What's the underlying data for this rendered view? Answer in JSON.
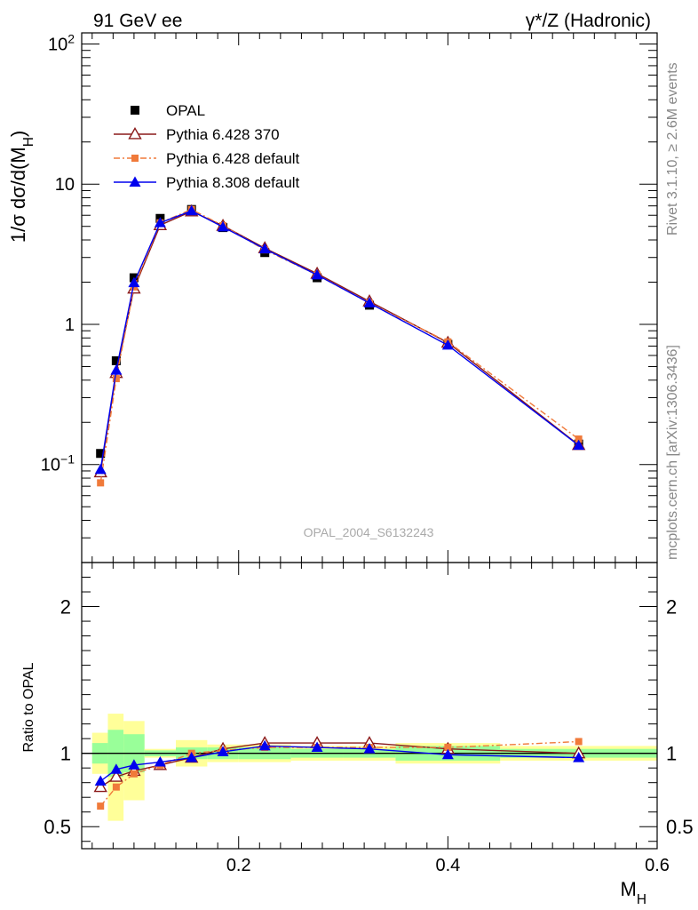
{
  "header": {
    "left": "91 GeV ee",
    "right": "γ*/Z (Hadronic)"
  },
  "side": {
    "rivet": "Rivet 3.1.10, ≥ 2.6M events",
    "mcplots": "mcplots.cern.ch [arXiv:1306.3436]"
  },
  "watermark": "OPAL_2004_S6132243",
  "chart_data": [
    {
      "type": "line",
      "ylabel": "1/σ dσ/d(M_H)",
      "xlabel": "M_H",
      "xlim": [
        0.05,
        0.6
      ],
      "ylim": [
        0.02,
        120
      ],
      "yscale": "log",
      "xticks": [
        "0.2",
        "0.4",
        "0.6"
      ],
      "yticks": [
        "10⁻¹",
        "1",
        "10",
        "10²"
      ],
      "legend_position": "top-left",
      "x": [
        0.068,
        0.083,
        0.1,
        0.125,
        0.155,
        0.185,
        0.225,
        0.275,
        0.325,
        0.4,
        0.525
      ],
      "series": [
        {
          "name": "OPAL",
          "style": "data",
          "marker": "square",
          "color": "#000000",
          "values": [
            0.12,
            0.55,
            2.15,
            5.7,
            6.6,
            4.9,
            3.25,
            2.15,
            1.37,
            0.72,
            0.14
          ]
        },
        {
          "name": "Pythia 6.428 370",
          "style": "solid",
          "marker": "open-triangle",
          "color": "#8b1a1a",
          "values": [
            0.088,
            0.45,
            1.8,
            5.1,
            6.4,
            5.05,
            3.5,
            2.3,
            1.46,
            0.74,
            0.138
          ]
        },
        {
          "name": "Pythia 6.428 default",
          "style": "dashdot",
          "marker": "square",
          "color": "#f07a3a",
          "values": [
            0.074,
            0.41,
            1.85,
            5.3,
            6.6,
            5.05,
            3.4,
            2.25,
            1.42,
            0.75,
            0.152
          ]
        },
        {
          "name": "Pythia 8.308 default",
          "style": "solid",
          "marker": "filled-triangle",
          "color": "#0000ee",
          "values": [
            0.092,
            0.47,
            1.98,
            5.3,
            6.45,
            4.95,
            3.45,
            2.25,
            1.42,
            0.71,
            0.137
          ]
        }
      ]
    },
    {
      "type": "line",
      "ylabel": "Ratio to OPAL",
      "xlabel": "M_H",
      "xlim": [
        0.05,
        0.6
      ],
      "ylim": [
        0.35,
        2.3
      ],
      "yticks": [
        "0.5",
        "1",
        "2"
      ],
      "bins": [
        {
          "x0": 0.06,
          "x1": 0.075,
          "green": [
            0.93,
            1.07
          ],
          "yellow": [
            0.86,
            1.14
          ]
        },
        {
          "x0": 0.075,
          "x1": 0.09,
          "green": [
            0.84,
            1.16
          ],
          "yellow": [
            0.54,
            1.27
          ]
        },
        {
          "x0": 0.09,
          "x1": 0.11,
          "green": [
            0.87,
            1.13
          ],
          "yellow": [
            0.68,
            1.22
          ]
        },
        {
          "x0": 0.11,
          "x1": 0.14,
          "green": [
            0.98,
            1.02
          ],
          "yellow": [
            0.97,
            1.03
          ]
        },
        {
          "x0": 0.14,
          "x1": 0.17,
          "green": [
            0.96,
            1.04
          ],
          "yellow": [
            0.91,
            1.09
          ]
        },
        {
          "x0": 0.17,
          "x1": 0.2,
          "green": [
            0.96,
            1.04
          ],
          "yellow": [
            0.94,
            1.06
          ]
        },
        {
          "x0": 0.2,
          "x1": 0.25,
          "green": [
            0.96,
            1.04
          ],
          "yellow": [
            0.94,
            1.06
          ]
        },
        {
          "x0": 0.25,
          "x1": 0.3,
          "green": [
            0.97,
            1.03
          ],
          "yellow": [
            0.95,
            1.05
          ]
        },
        {
          "x0": 0.3,
          "x1": 0.35,
          "green": [
            0.97,
            1.03
          ],
          "yellow": [
            0.95,
            1.05
          ]
        },
        {
          "x0": 0.35,
          "x1": 0.45,
          "green": [
            0.95,
            1.05
          ],
          "yellow": [
            0.93,
            1.07
          ]
        },
        {
          "x0": 0.45,
          "x1": 0.6,
          "green": [
            0.97,
            1.03
          ],
          "yellow": [
            0.95,
            1.05
          ]
        }
      ],
      "x": [
        0.068,
        0.083,
        0.1,
        0.125,
        0.155,
        0.185,
        0.225,
        0.275,
        0.325,
        0.4,
        0.525
      ],
      "series": [
        {
          "name": "Pythia 6.428 370",
          "style": "solid",
          "marker": "open-triangle",
          "color": "#8b1a1a",
          "values": [
            0.77,
            0.84,
            0.88,
            0.92,
            0.97,
            1.03,
            1.07,
            1.07,
            1.07,
            1.03,
            1.0
          ]
        },
        {
          "name": "Pythia 6.428 default",
          "style": "dashdot",
          "marker": "square",
          "color": "#f07a3a",
          "values": [
            0.64,
            0.77,
            0.86,
            0.92,
            1.0,
            1.02,
            1.04,
            1.04,
            1.04,
            1.04,
            1.08
          ]
        },
        {
          "name": "Pythia 8.308 default",
          "style": "solid",
          "marker": "filled-triangle",
          "color": "#0000ee",
          "values": [
            0.81,
            0.89,
            0.92,
            0.94,
            0.97,
            1.01,
            1.05,
            1.04,
            1.03,
            0.99,
            0.97
          ]
        }
      ]
    }
  ]
}
